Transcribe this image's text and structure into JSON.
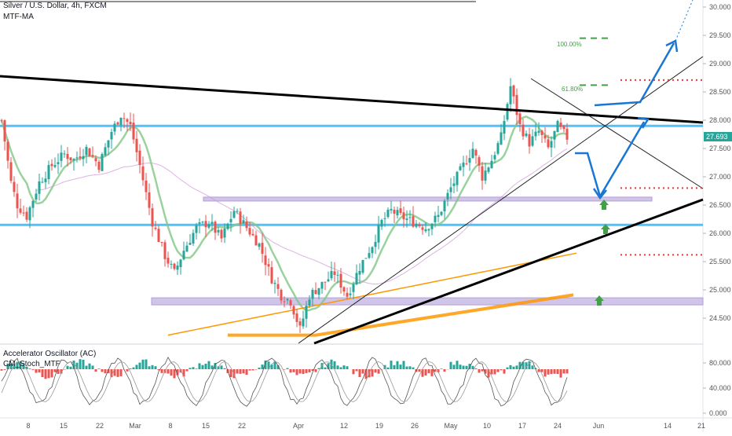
{
  "header": {
    "symbol_line": "Silver / U.S. Dollar, 4h, FXCM",
    "indicator_line": "MTF-MA"
  },
  "subpanel": {
    "indicator1": "Accelerator Oscillator (AC)",
    "indicator2": "CM_Stoch_MTF"
  },
  "price_axis": {
    "ticks": [
      "30.000",
      "29.500",
      "29.000",
      "28.500",
      "28.000",
      "27.500",
      "27.000",
      "26.500",
      "26.000",
      "25.500",
      "25.000",
      "24.500"
    ],
    "current_price": "27.693"
  },
  "osc_axis": {
    "ticks": [
      "80.000",
      "40.000",
      "0.000"
    ]
  },
  "time_axis": {
    "ticks": [
      "8",
      "15",
      "22",
      "Mar",
      "8",
      "15",
      "22",
      "Apr",
      "12",
      "19",
      "26",
      "May",
      "10",
      "17",
      "24",
      "Jun",
      "14",
      "21"
    ]
  },
  "fib": {
    "level_100": "100.00%",
    "level_618": "61.80%"
  },
  "colors": {
    "background": "#ffffff",
    "bull_candle": "#26a69a",
    "bear_candle": "#ef5350",
    "support_cyan": "#4fc3f7",
    "zone_purple": "#b39ddb",
    "trendline_black": "#000000",
    "ma_green": "#81c784",
    "ma_orange": "#ff9800",
    "projection_blue": "#1976d2",
    "target_green": "#43a047",
    "target_red_dotted": "#e53935",
    "price_tag": "#26a69a"
  },
  "chart_data": {
    "type": "candlestick",
    "title": "Silver / U.S. Dollar, 4h, FXCM",
    "ylim": [
      24.2,
      30.1
    ],
    "y_ticks": [
      30.0,
      29.5,
      29.0,
      28.5,
      28.0,
      27.5,
      27.0,
      26.5,
      26.0,
      25.5,
      25.0,
      24.5
    ],
    "x_ticks": [
      "8",
      "15",
      "22",
      "Mar",
      "8",
      "15",
      "22",
      "Apr",
      "12",
      "19",
      "26",
      "May",
      "10",
      "17",
      "24",
      "Jun",
      "14",
      "21"
    ],
    "last_price": 27.693,
    "close_path": [
      {
        "t": 0,
        "p": 28.0
      },
      {
        "t": 3,
        "p": 26.9
      },
      {
        "t": 5,
        "p": 26.5
      },
      {
        "t": 8,
        "p": 26.3
      },
      {
        "t": 12,
        "p": 26.9
      },
      {
        "t": 16,
        "p": 27.2
      },
      {
        "t": 20,
        "p": 27.4
      },
      {
        "t": 23,
        "p": 27.3
      },
      {
        "t": 27,
        "p": 27.5
      },
      {
        "t": 31,
        "p": 27.2
      },
      {
        "t": 35,
        "p": 27.8
      },
      {
        "t": 38,
        "p": 28.1
      },
      {
        "t": 41,
        "p": 27.9
      },
      {
        "t": 44,
        "p": 27.2
      },
      {
        "t": 48,
        "p": 26.2
      },
      {
        "t": 52,
        "p": 25.6
      },
      {
        "t": 55,
        "p": 25.3
      },
      {
        "t": 58,
        "p": 25.7
      },
      {
        "t": 62,
        "p": 26.1
      },
      {
        "t": 66,
        "p": 26.2
      },
      {
        "t": 70,
        "p": 25.9
      },
      {
        "t": 74,
        "p": 26.4
      },
      {
        "t": 78,
        "p": 26.1
      },
      {
        "t": 82,
        "p": 25.8
      },
      {
        "t": 86,
        "p": 25.2
      },
      {
        "t": 89,
        "p": 24.9
      },
      {
        "t": 92,
        "p": 24.8
      },
      {
        "t": 95,
        "p": 24.3
      },
      {
        "t": 98,
        "p": 24.9
      },
      {
        "t": 102,
        "p": 25.1
      },
      {
        "t": 106,
        "p": 25.3
      },
      {
        "t": 110,
        "p": 24.9
      },
      {
        "t": 114,
        "p": 25.4
      },
      {
        "t": 118,
        "p": 25.8
      },
      {
        "t": 121,
        "p": 26.2
      },
      {
        "t": 124,
        "p": 26.4
      },
      {
        "t": 127,
        "p": 26.3
      },
      {
        "t": 131,
        "p": 26.2
      },
      {
        "t": 135,
        "p": 26.1
      },
      {
        "t": 139,
        "p": 26.3
      },
      {
        "t": 143,
        "p": 26.8
      },
      {
        "t": 147,
        "p": 27.2
      },
      {
        "t": 150,
        "p": 27.5
      },
      {
        "t": 153,
        "p": 27.0
      },
      {
        "t": 156,
        "p": 27.3
      },
      {
        "t": 159,
        "p": 27.7
      },
      {
        "t": 162,
        "p": 28.6
      },
      {
        "t": 165,
        "p": 27.9
      },
      {
        "t": 168,
        "p": 27.6
      },
      {
        "t": 171,
        "p": 27.8
      },
      {
        "t": 174,
        "p": 27.5
      },
      {
        "t": 177,
        "p": 27.9
      },
      {
        "t": 180,
        "p": 27.693
      }
    ],
    "levels": {
      "horizontal_support": [
        27.9,
        26.15
      ],
      "zones": [
        [
          26.58,
          26.64
        ],
        [
          24.74,
          24.86
        ]
      ],
      "targets_green_dashed": [
        29.45,
        28.62
      ],
      "targets_red_dotted": [
        28.71,
        26.8,
        25.62
      ]
    },
    "fib_labels": [
      "100.00%",
      "61.80%"
    ],
    "projection": [
      27.4,
      26.6,
      28.0,
      29.4
    ],
    "oscillator": {
      "name": "Accelerator Oscillator (AC)",
      "ylim": [
        0,
        100
      ],
      "ticks": [
        80,
        40,
        0
      ]
    }
  }
}
